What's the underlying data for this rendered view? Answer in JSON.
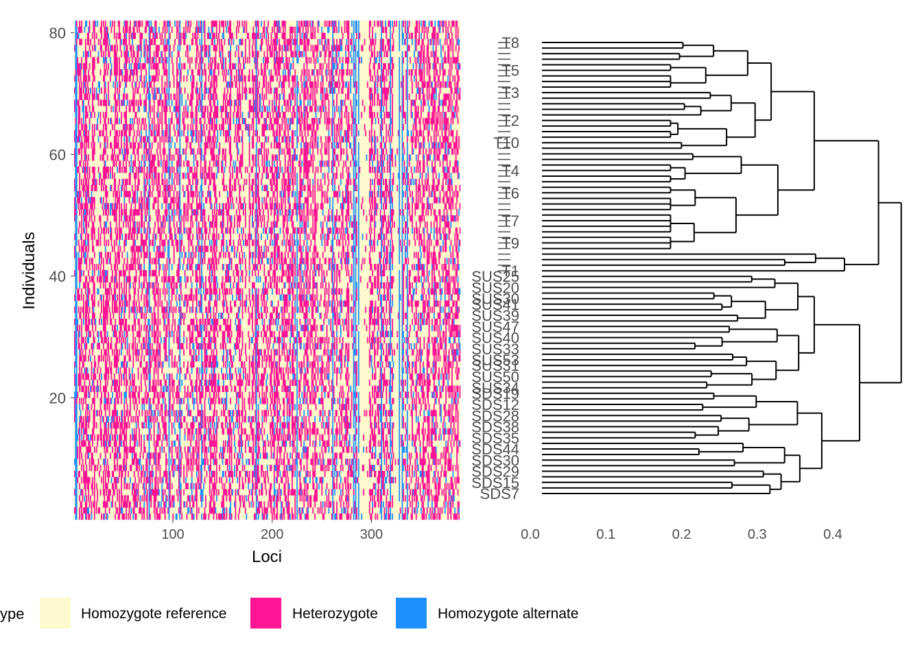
{
  "chart_data": [
    {
      "type": "heatmap",
      "xlabel": "Loci",
      "ylabel": "Individuals",
      "xlim": [
        0,
        389
      ],
      "ylim": [
        0,
        82
      ],
      "x_ticks": [
        "100",
        "200",
        "300"
      ],
      "y_ticks": [
        "20",
        "40",
        "60",
        "80"
      ],
      "n_loci": 389,
      "n_individuals": 82,
      "legend": {
        "title": "ype",
        "position": "bottom",
        "items": [
          {
            "label": "Homozygote reference",
            "color": "#FFFACD"
          },
          {
            "label": "Heterozygote",
            "color": "#FF1493"
          },
          {
            "label": "Homozygote alternate",
            "color": "#1E90FF"
          }
        ]
      },
      "colors": {
        "ref": "#FFFACD",
        "het": "#FF1493",
        "alt": "#1E90FF"
      }
    },
    {
      "type": "dendrogram",
      "xlim": [
        0,
        0.5
      ],
      "x_ticks": [
        "0.0",
        "0.1",
        "0.2",
        "0.3",
        "0.4"
      ],
      "tip_labels_visible": [
        "T8",
        "T5",
        "T3",
        "T2",
        "T10",
        "T4",
        "T6",
        "T7",
        "T9",
        "T1",
        "SUS25",
        "SUS20",
        "SUS30",
        "SUS41",
        "SUS39",
        "SUS47",
        "SUS40",
        "SUS33",
        "SUS53",
        "SUS31",
        "SUS50",
        "SUS34",
        "SDS19",
        "SDS12",
        "SDS28",
        "SDS38",
        "SDS35",
        "SDS44",
        "SDS30",
        "SDS29",
        "SDS15",
        "SDS7"
      ],
      "clusters": [
        {
          "group": "T",
          "height": 0.4
        },
        {
          "group": "SUS",
          "height": 0.36
        },
        {
          "group": "SDS",
          "height": 0.37
        }
      ],
      "root_height": 0.475
    }
  ]
}
